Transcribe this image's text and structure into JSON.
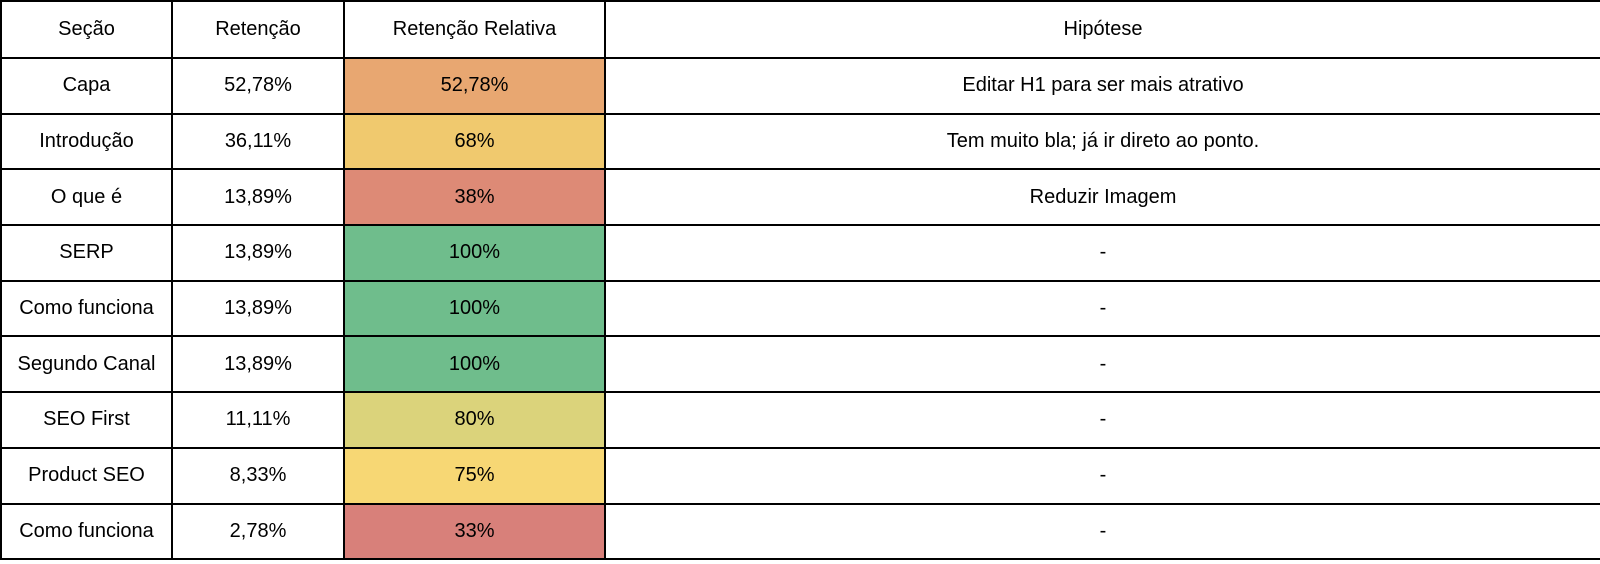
{
  "chart_data": {
    "type": "table",
    "columns": [
      "Seção",
      "Retenção",
      "Retenção Relativa",
      "Hipótese"
    ],
    "rows": [
      {
        "secao": "Capa",
        "retencao": "52,78%",
        "retencao_relativa": "52,78%",
        "relativa_bg": "#e8a771",
        "hipotese": "Editar H1 para ser mais atrativo"
      },
      {
        "secao": "Introdução",
        "retencao": "36,11%",
        "retencao_relativa": "68%",
        "relativa_bg": "#f0c96e",
        "hipotese": "Tem muito bla; já ir direto ao ponto."
      },
      {
        "secao": "O que é",
        "retencao": "13,89%",
        "retencao_relativa": "38%",
        "relativa_bg": "#dd8a76",
        "hipotese": "Reduzir Imagem"
      },
      {
        "secao": "SERP",
        "retencao": "13,89%",
        "retencao_relativa": "100%",
        "relativa_bg": "#6fbd8c",
        "hipotese": "-"
      },
      {
        "secao": "Como funciona",
        "retencao": "13,89%",
        "retencao_relativa": "100%",
        "relativa_bg": "#6fbd8c",
        "hipotese": "-"
      },
      {
        "secao": "Segundo Canal",
        "retencao": "13,89%",
        "retencao_relativa": "100%",
        "relativa_bg": "#6fbd8c",
        "hipotese": "-"
      },
      {
        "secao": "SEO First",
        "retencao": "11,11%",
        "retencao_relativa": "80%",
        "relativa_bg": "#dbd37b",
        "hipotese": "-"
      },
      {
        "secao": "Product SEO",
        "retencao": "8,33%",
        "retencao_relativa": "75%",
        "relativa_bg": "#f7d774",
        "hipotese": "-"
      },
      {
        "secao": "Como funciona",
        "retencao": "2,78%",
        "retencao_relativa": "33%",
        "relativa_bg": "#d8807a",
        "hipotese": "-"
      }
    ],
    "layout": {
      "grid": "on",
      "border_color": "#000000",
      "text_color": "#000000"
    }
  }
}
